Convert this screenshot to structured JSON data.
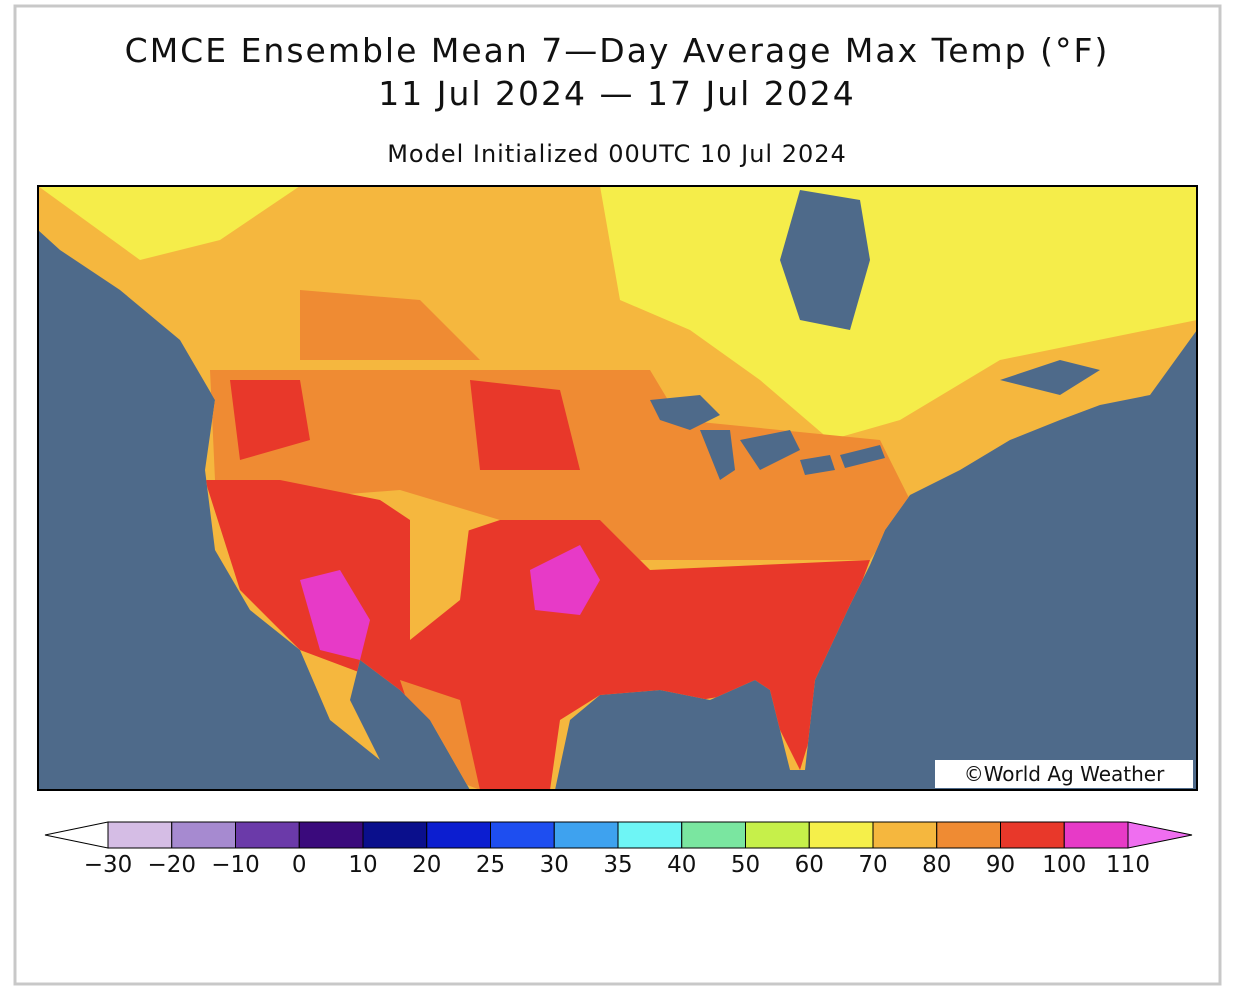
{
  "header": {
    "title": "CMCE Ensemble Mean 7—Day Average Max Temp (°F)",
    "subtitle": "11 Jul 2024 — 17 Jul 2024",
    "init": "Model Initialized 00UTC 10 Jul 2024"
  },
  "watermark": "©World Ag Weather",
  "colorbar": {
    "labels": [
      "−30",
      "−20",
      "−10",
      "0",
      "10",
      "20",
      "25",
      "30",
      "35",
      "40",
      "50",
      "60",
      "70",
      "80",
      "90",
      "100",
      "110"
    ]
  }
}
